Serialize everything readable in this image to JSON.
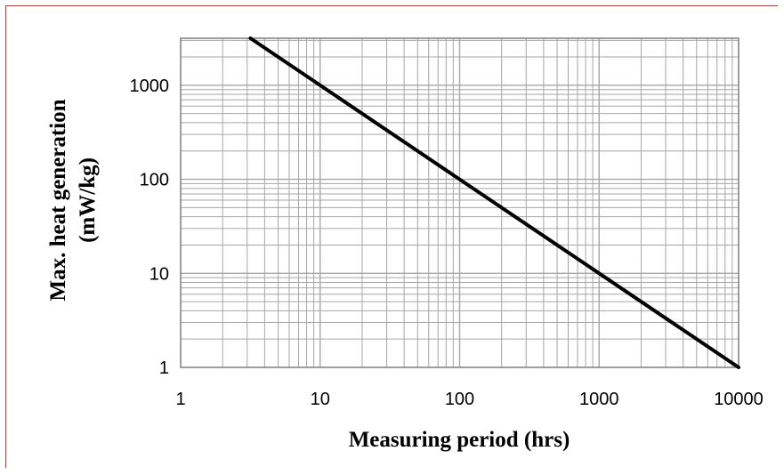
{
  "chart_data": {
    "type": "line",
    "x_scale": "log",
    "y_scale": "log",
    "xlim": [
      1,
      10000
    ],
    "ylim": [
      1,
      3162
    ],
    "x_ticks": [
      "1",
      "10",
      "100",
      "1000",
      "10000"
    ],
    "y_ticks": [
      "1",
      "10",
      "100",
      "1000"
    ],
    "xlabel": "Measuring period (hrs)",
    "ylabel_line1": "Max. heat generation",
    "ylabel_line2": "(mW/kg)",
    "grid": "major and minor",
    "series": [
      {
        "x": [
          3.162,
          10,
          100,
          1000,
          10000
        ],
        "y": [
          3162,
          1000,
          100,
          10,
          1
        ],
        "color": "#000000"
      }
    ],
    "frame_color": "#e32b2b",
    "grid_color": "#a6a6a6"
  }
}
